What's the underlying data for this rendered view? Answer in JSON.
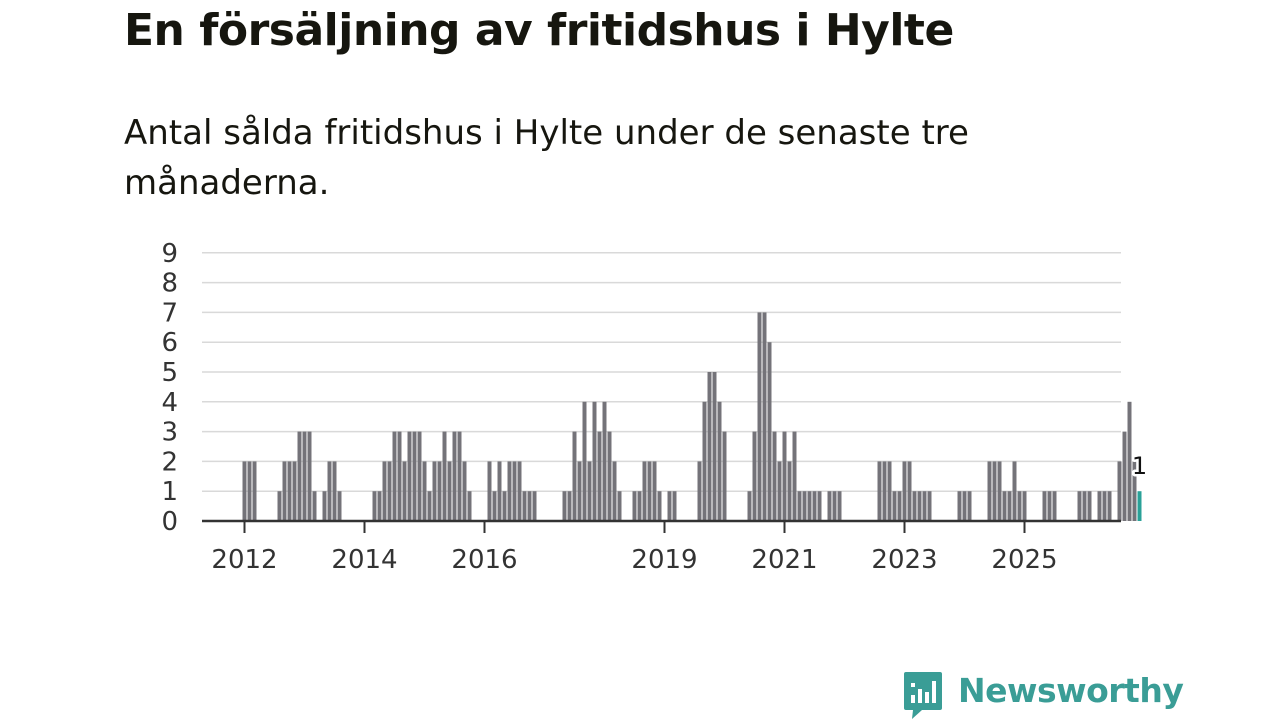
{
  "header": {
    "title": "En försäljning av fritidshus i Hylte",
    "subtitle": "Antal sålda fritidshus i Hylte under de senaste tre månaderna."
  },
  "logo": {
    "text": "Newsworthy",
    "icon": "chat-bar-chart-icon"
  },
  "colors": {
    "bar": "#747379",
    "highlight": "#2aa198",
    "grid": "#d9d9d9",
    "axis": "#333333",
    "text": "#333333"
  },
  "chart_data": {
    "type": "bar",
    "title": "En försäljning av fritidshus i Hylte",
    "subtitle": "Antal sålda fritidshus i Hylte under de senaste tre månaderna.",
    "y_ticks": [
      "0",
      "1",
      "2",
      "3",
      "4",
      "5",
      "6",
      "7",
      "8",
      "9"
    ],
    "ylim": [
      0,
      9
    ],
    "grid": true,
    "x_ticks": [
      {
        "label": "2012",
        "month_index": 0
      },
      {
        "label": "2014",
        "month_index": 24
      },
      {
        "label": "2016",
        "month_index": 48
      },
      {
        "label": "2019",
        "month_index": 84
      },
      {
        "label": "2021",
        "month_index": 108
      },
      {
        "label": "2023",
        "month_index": 132
      },
      {
        "label": "2025",
        "month_index": 156
      }
    ],
    "start": "2012-01",
    "highlight_label": "1",
    "values": [
      2,
      2,
      2,
      0,
      0,
      0,
      0,
      1,
      2,
      2,
      2,
      3,
      3,
      3,
      1,
      0,
      1,
      2,
      2,
      1,
      0,
      0,
      0,
      0,
      0,
      0,
      1,
      1,
      2,
      2,
      3,
      3,
      2,
      3,
      3,
      3,
      2,
      1,
      2,
      2,
      3,
      2,
      3,
      3,
      2,
      1,
      0,
      0,
      0,
      2,
      1,
      2,
      1,
      2,
      2,
      2,
      1,
      1,
      1,
      0,
      0,
      0,
      0,
      0,
      1,
      1,
      3,
      2,
      4,
      2,
      4,
      3,
      4,
      3,
      2,
      1,
      0,
      0,
      1,
      1,
      2,
      2,
      2,
      1,
      0,
      1,
      1,
      0,
      0,
      0,
      0,
      2,
      4,
      5,
      5,
      4,
      3,
      0,
      0,
      0,
      0,
      1,
      3,
      7,
      7,
      6,
      3,
      2,
      3,
      2,
      3,
      1,
      1,
      1,
      1,
      1,
      0,
      1,
      1,
      1,
      0,
      0,
      0,
      0,
      0,
      0,
      0,
      2,
      2,
      2,
      1,
      1,
      2,
      2,
      1,
      1,
      1,
      1,
      0,
      0,
      0,
      0,
      0,
      1,
      1,
      1,
      0,
      0,
      0,
      2,
      2,
      2,
      1,
      1,
      2,
      1,
      1,
      0,
      0,
      0,
      1,
      1,
      1,
      0,
      0,
      0,
      0,
      1,
      1,
      1,
      0,
      1,
      1,
      1,
      0,
      2,
      3,
      4,
      2,
      1
    ]
  }
}
